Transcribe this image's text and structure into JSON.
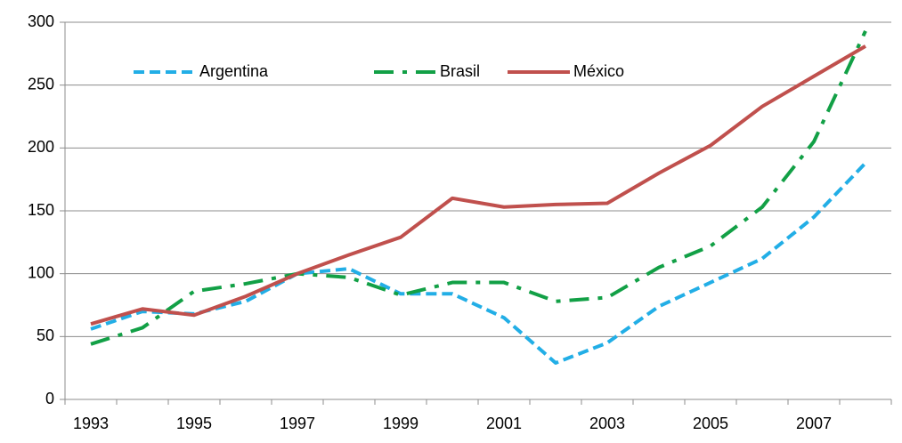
{
  "chart_data": {
    "type": "line",
    "categories": [
      "1993",
      null,
      "1995",
      null,
      "1997",
      null,
      "1999",
      null,
      "2001",
      null,
      "2003",
      null,
      "2005",
      null,
      "2007",
      null
    ],
    "series": [
      {
        "name": "Argentina",
        "color": "#22aee6",
        "dash": "dashed",
        "values": [
          56,
          70,
          68,
          78,
          100,
          104,
          84,
          84,
          65,
          29,
          45,
          74,
          93,
          112,
          145,
          188
        ]
      },
      {
        "name": "Brasil",
        "color": "#12a046",
        "dash": "dashdot",
        "values": [
          44,
          57,
          86,
          92,
          100,
          97,
          83,
          93,
          93,
          78,
          81,
          105,
          122,
          153,
          205,
          293
        ]
      },
      {
        "name": "México",
        "color": "#c0504d",
        "dash": "solid",
        "values": [
          60,
          72,
          67,
          82,
          100,
          115,
          129,
          160,
          153,
          155,
          156,
          180,
          202,
          233,
          257,
          281
        ]
      }
    ],
    "ylim": [
      0,
      300
    ],
    "yticks": [
      0,
      50,
      100,
      150,
      200,
      250,
      300
    ],
    "grid": true,
    "legend": "top-left"
  }
}
